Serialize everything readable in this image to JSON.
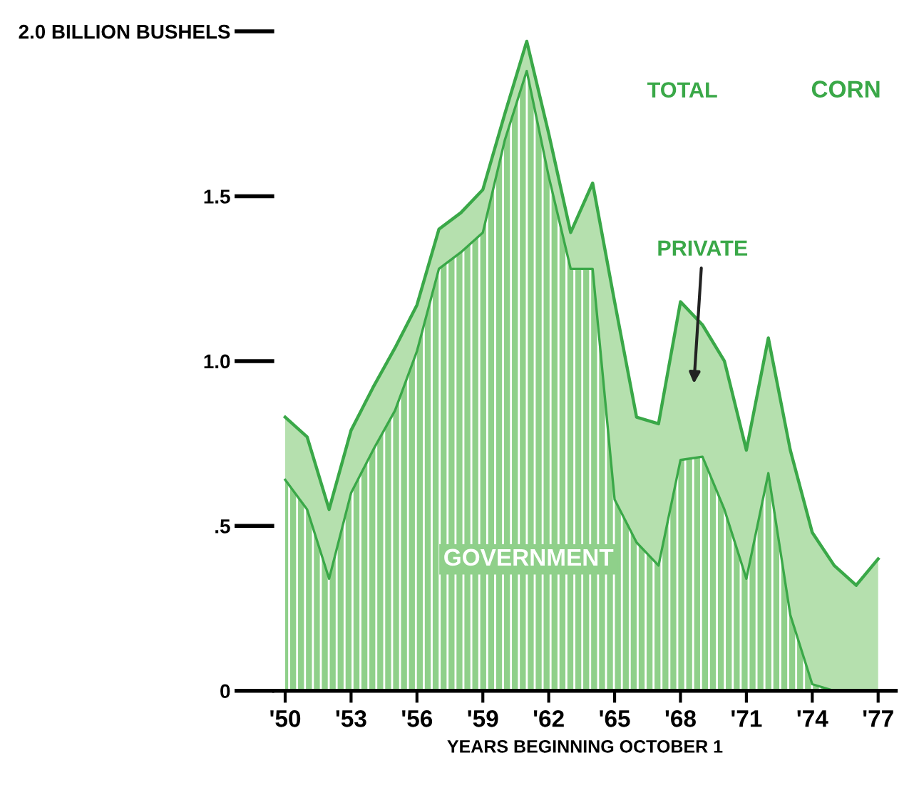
{
  "chart_data": {
    "type": "area",
    "stacked": true,
    "title": "CORN",
    "xlabel": "YEARS BEGINNING OCTOBER 1",
    "x": [
      1950,
      1951,
      1952,
      1953,
      1954,
      1955,
      1956,
      1957,
      1958,
      1959,
      1960,
      1961,
      1962,
      1963,
      1964,
      1965,
      1966,
      1967,
      1968,
      1969,
      1970,
      1971,
      1972,
      1973,
      1974,
      1975,
      1976,
      1977
    ],
    "series": [
      {
        "name": "GOVERNMENT",
        "color": "#8fd08a",
        "values": [
          0.64,
          0.55,
          0.34,
          0.6,
          0.73,
          0.85,
          1.03,
          1.28,
          1.33,
          1.39,
          1.67,
          1.88,
          1.56,
          1.28,
          1.28,
          0.58,
          0.45,
          0.38,
          0.7,
          0.71,
          0.55,
          0.34,
          0.66,
          0.23,
          0.02,
          0,
          0,
          0
        ]
      },
      {
        "name": "PRIVATE",
        "color": "#b5e0ae",
        "values": [
          0.19,
          0.22,
          0.21,
          0.19,
          0.19,
          0.19,
          0.14,
          0.12,
          0.12,
          0.13,
          0.08,
          0.09,
          0.13,
          0.11,
          0.26,
          0.6,
          0.38,
          0.43,
          0.48,
          0.4,
          0.45,
          0.39,
          0.41,
          0.5,
          0.46,
          0.38,
          0.32,
          0.4
        ]
      }
    ],
    "annotations": [
      "TOTAL"
    ],
    "xlim": [
      1949.5,
      1977.8
    ],
    "ylim": [
      0,
      2.0
    ],
    "xticks": [
      {
        "value": 1950,
        "label": "'50"
      },
      {
        "value": 1953,
        "label": "'53"
      },
      {
        "value": 1956,
        "label": "'56"
      },
      {
        "value": 1959,
        "label": "'59"
      },
      {
        "value": 1962,
        "label": "'62"
      },
      {
        "value": 1965,
        "label": "'65"
      },
      {
        "value": 1968,
        "label": "'68"
      },
      {
        "value": 1971,
        "label": "'71"
      },
      {
        "value": 1974,
        "label": "'74"
      },
      {
        "value": 1977,
        "label": "'77"
      }
    ],
    "yticks": [
      {
        "value": 0,
        "label": "0"
      },
      {
        "value": 0.5,
        "label": ".5"
      },
      {
        "value": 1.0,
        "label": "1.0"
      },
      {
        "value": 1.5,
        "label": "1.5"
      },
      {
        "value": 2.0,
        "label": "2.0 BILLION BUSHELS"
      }
    ],
    "grid": false,
    "legend": false
  }
}
